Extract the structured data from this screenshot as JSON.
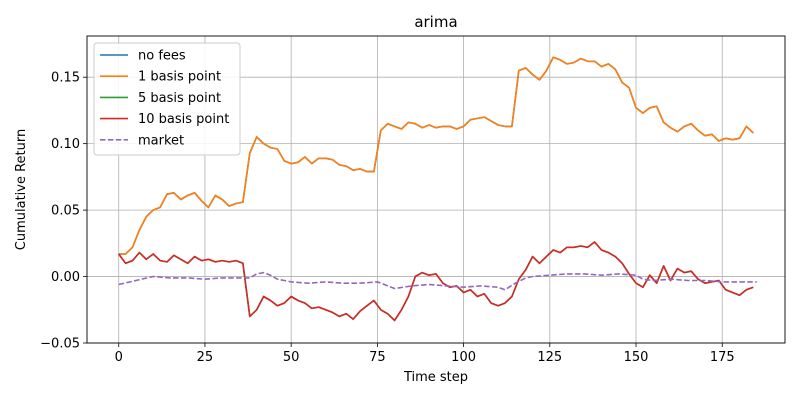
{
  "chart_data": {
    "type": "line",
    "title": "arima",
    "xlabel": "Time step",
    "ylabel": "Cumulative Return",
    "xlim": [
      -9.2,
      193.2
    ],
    "ylim": [
      -0.05,
      0.181
    ],
    "xticks": [
      0,
      25,
      50,
      75,
      100,
      125,
      150,
      175
    ],
    "yticks": [
      -0.05,
      0.0,
      0.05,
      0.1,
      0.15
    ],
    "ytick_labels": [
      "−0.05",
      "0.00",
      "0.05",
      "0.10",
      "0.15"
    ],
    "grid": true,
    "legend_position": "top-left",
    "series": [
      {
        "name": "no fees",
        "color": "#1f77b4",
        "style": "solid",
        "x": [
          0,
          2,
          4,
          6,
          8,
          10,
          12,
          14,
          16,
          18,
          20,
          22,
          24,
          26,
          28,
          30,
          32,
          34,
          36,
          38,
          40,
          42,
          44,
          46,
          48,
          50,
          52,
          54,
          56,
          58,
          60,
          62,
          64,
          66,
          68,
          70,
          72,
          74,
          76,
          78,
          80,
          82,
          84,
          86,
          88,
          90,
          92,
          94,
          96,
          98,
          100,
          102,
          104,
          106,
          108,
          110,
          112,
          114,
          116,
          118,
          120,
          122,
          124,
          126,
          128,
          130,
          132,
          134,
          136,
          138,
          140,
          142,
          144,
          146,
          148,
          150,
          152,
          154,
          156,
          158,
          160,
          162,
          164,
          166,
          168,
          170,
          172,
          174,
          176,
          178,
          180,
          182,
          184
        ],
        "values": [
          0.017,
          0.017,
          0.022,
          0.035,
          0.045,
          0.05,
          0.052,
          0.062,
          0.063,
          0.058,
          0.061,
          0.063,
          0.057,
          0.052,
          0.061,
          0.058,
          0.053,
          0.055,
          0.056,
          0.093,
          0.105,
          0.1,
          0.097,
          0.096,
          0.087,
          0.085,
          0.086,
          0.09,
          0.085,
          0.089,
          0.089,
          0.088,
          0.084,
          0.083,
          0.08,
          0.081,
          0.079,
          0.079,
          0.11,
          0.115,
          0.113,
          0.111,
          0.116,
          0.115,
          0.112,
          0.114,
          0.112,
          0.113,
          0.113,
          0.111,
          0.113,
          0.118,
          0.119,
          0.12,
          0.117,
          0.114,
          0.113,
          0.113,
          0.155,
          0.157,
          0.152,
          0.148,
          0.155,
          0.165,
          0.163,
          0.16,
          0.161,
          0.164,
          0.162,
          0.162,
          0.158,
          0.16,
          0.156,
          0.146,
          0.142,
          0.127,
          0.123,
          0.127,
          0.128,
          0.116,
          0.112,
          0.109,
          0.113,
          0.115,
          0.11,
          0.106,
          0.107,
          0.102,
          0.104,
          0.103,
          0.104,
          0.113,
          0.108
        ]
      },
      {
        "name": "1 basis point",
        "color": "#ff7f0e",
        "style": "solid",
        "x": [
          0,
          2,
          4,
          6,
          8,
          10,
          12,
          14,
          16,
          18,
          20,
          22,
          24,
          26,
          28,
          30,
          32,
          34,
          36,
          38,
          40,
          42,
          44,
          46,
          48,
          50,
          52,
          54,
          56,
          58,
          60,
          62,
          64,
          66,
          68,
          70,
          72,
          74,
          76,
          78,
          80,
          82,
          84,
          86,
          88,
          90,
          92,
          94,
          96,
          98,
          100,
          102,
          104,
          106,
          108,
          110,
          112,
          114,
          116,
          118,
          120,
          122,
          124,
          126,
          128,
          130,
          132,
          134,
          136,
          138,
          140,
          142,
          144,
          146,
          148,
          150,
          152,
          154,
          156,
          158,
          160,
          162,
          164,
          166,
          168,
          170,
          172,
          174,
          176,
          178,
          180,
          182,
          184
        ],
        "values": [
          0.017,
          0.017,
          0.022,
          0.035,
          0.045,
          0.05,
          0.052,
          0.062,
          0.063,
          0.058,
          0.061,
          0.063,
          0.057,
          0.052,
          0.061,
          0.058,
          0.053,
          0.055,
          0.056,
          0.093,
          0.105,
          0.1,
          0.097,
          0.096,
          0.087,
          0.085,
          0.086,
          0.09,
          0.085,
          0.089,
          0.089,
          0.088,
          0.084,
          0.083,
          0.08,
          0.081,
          0.079,
          0.079,
          0.11,
          0.115,
          0.113,
          0.111,
          0.116,
          0.115,
          0.112,
          0.114,
          0.112,
          0.113,
          0.113,
          0.111,
          0.113,
          0.118,
          0.119,
          0.12,
          0.117,
          0.114,
          0.113,
          0.113,
          0.155,
          0.157,
          0.152,
          0.148,
          0.155,
          0.165,
          0.163,
          0.16,
          0.161,
          0.164,
          0.162,
          0.162,
          0.158,
          0.16,
          0.156,
          0.146,
          0.142,
          0.127,
          0.123,
          0.127,
          0.128,
          0.116,
          0.112,
          0.109,
          0.113,
          0.115,
          0.11,
          0.106,
          0.107,
          0.102,
          0.104,
          0.103,
          0.104,
          0.113,
          0.108
        ]
      },
      {
        "name": "5 basis point",
        "color": "#2ca02c",
        "style": "solid",
        "x": [
          0,
          2,
          4,
          6,
          8,
          10,
          12,
          14,
          16,
          18,
          20,
          22,
          24,
          26,
          28,
          30,
          32,
          34,
          36,
          38,
          40,
          42,
          44,
          46,
          48,
          50,
          52,
          54,
          56,
          58,
          60,
          62,
          64,
          66,
          68,
          70,
          72,
          74,
          76,
          78,
          80,
          82,
          84,
          86,
          88,
          90,
          92,
          94,
          96,
          98,
          100,
          102,
          104,
          106,
          108,
          110,
          112,
          114,
          116,
          118,
          120,
          122,
          124,
          126,
          128,
          130,
          132,
          134,
          136,
          138,
          140,
          142,
          144,
          146,
          148,
          150,
          152,
          154,
          156,
          158,
          160,
          162,
          164,
          166,
          168,
          170,
          172,
          174,
          176,
          178,
          180,
          182,
          184
        ],
        "values": [
          0.017,
          0.01,
          0.012,
          0.018,
          0.013,
          0.017,
          0.012,
          0.011,
          0.016,
          0.013,
          0.01,
          0.015,
          0.012,
          0.013,
          0.011,
          0.012,
          0.011,
          0.012,
          0.01,
          -0.03,
          -0.025,
          -0.015,
          -0.018,
          -0.022,
          -0.02,
          -0.015,
          -0.018,
          -0.02,
          -0.024,
          -0.023,
          -0.025,
          -0.027,
          -0.03,
          -0.028,
          -0.032,
          -0.026,
          -0.022,
          -0.018,
          -0.025,
          -0.028,
          -0.033,
          -0.025,
          -0.015,
          0.0,
          0.003,
          0.001,
          0.002,
          -0.005,
          -0.008,
          -0.007,
          -0.012,
          -0.01,
          -0.015,
          -0.013,
          -0.02,
          -0.022,
          -0.02,
          -0.015,
          -0.002,
          0.005,
          0.015,
          0.01,
          0.015,
          0.02,
          0.018,
          0.022,
          0.022,
          0.023,
          0.022,
          0.026,
          0.02,
          0.018,
          0.015,
          0.01,
          0.002,
          -0.005,
          -0.008,
          0.001,
          -0.005,
          0.008,
          -0.003,
          0.006,
          0.003,
          0.004,
          -0.002,
          -0.005,
          -0.004,
          -0.003,
          -0.01,
          -0.012,
          -0.014,
          -0.01,
          -0.008
        ]
      },
      {
        "name": "10 basis point",
        "color": "#d62728",
        "style": "solid",
        "x": [
          0,
          2,
          4,
          6,
          8,
          10,
          12,
          14,
          16,
          18,
          20,
          22,
          24,
          26,
          28,
          30,
          32,
          34,
          36,
          38,
          40,
          42,
          44,
          46,
          48,
          50,
          52,
          54,
          56,
          58,
          60,
          62,
          64,
          66,
          68,
          70,
          72,
          74,
          76,
          78,
          80,
          82,
          84,
          86,
          88,
          90,
          92,
          94,
          96,
          98,
          100,
          102,
          104,
          106,
          108,
          110,
          112,
          114,
          116,
          118,
          120,
          122,
          124,
          126,
          128,
          130,
          132,
          134,
          136,
          138,
          140,
          142,
          144,
          146,
          148,
          150,
          152,
          154,
          156,
          158,
          160,
          162,
          164,
          166,
          168,
          170,
          172,
          174,
          176,
          178,
          180,
          182,
          184
        ],
        "values": [
          0.017,
          0.01,
          0.012,
          0.018,
          0.013,
          0.017,
          0.012,
          0.011,
          0.016,
          0.013,
          0.01,
          0.015,
          0.012,
          0.013,
          0.011,
          0.012,
          0.011,
          0.012,
          0.01,
          -0.03,
          -0.025,
          -0.015,
          -0.018,
          -0.022,
          -0.02,
          -0.015,
          -0.018,
          -0.02,
          -0.024,
          -0.023,
          -0.025,
          -0.027,
          -0.03,
          -0.028,
          -0.032,
          -0.026,
          -0.022,
          -0.018,
          -0.025,
          -0.028,
          -0.033,
          -0.025,
          -0.015,
          0.0,
          0.003,
          0.001,
          0.002,
          -0.005,
          -0.008,
          -0.007,
          -0.012,
          -0.01,
          -0.015,
          -0.013,
          -0.02,
          -0.022,
          -0.02,
          -0.015,
          -0.002,
          0.005,
          0.015,
          0.01,
          0.015,
          0.02,
          0.018,
          0.022,
          0.022,
          0.023,
          0.022,
          0.026,
          0.02,
          0.018,
          0.015,
          0.01,
          0.002,
          -0.005,
          -0.008,
          0.001,
          -0.005,
          0.008,
          -0.003,
          0.006,
          0.003,
          0.004,
          -0.002,
          -0.005,
          -0.004,
          -0.003,
          -0.01,
          -0.012,
          -0.014,
          -0.01,
          -0.008
        ]
      },
      {
        "name": "market",
        "color": "#9467bd",
        "style": "dashed",
        "x": [
          0,
          5,
          10,
          15,
          20,
          25,
          30,
          35,
          38,
          40,
          42,
          44,
          46,
          48,
          50,
          55,
          60,
          65,
          70,
          75,
          80,
          85,
          90,
          95,
          100,
          105,
          110,
          112,
          115,
          118,
          120,
          125,
          130,
          135,
          140,
          145,
          150,
          152,
          155,
          160,
          165,
          170,
          175,
          180,
          185
        ],
        "values": [
          -0.006,
          -0.003,
          -0.0,
          -0.001,
          -0.001,
          -0.002,
          -0.001,
          -0.001,
          -0.001,
          0.002,
          0.003,
          0.001,
          -0.002,
          -0.003,
          -0.004,
          -0.005,
          -0.004,
          -0.005,
          -0.005,
          -0.004,
          -0.009,
          -0.007,
          -0.006,
          -0.007,
          -0.008,
          -0.007,
          -0.008,
          -0.01,
          -0.005,
          -0.001,
          0.0,
          0.001,
          0.002,
          0.002,
          0.001,
          0.002,
          0.001,
          -0.002,
          -0.003,
          -0.002,
          -0.003,
          -0.003,
          -0.004,
          -0.004,
          -0.004
        ]
      }
    ]
  }
}
